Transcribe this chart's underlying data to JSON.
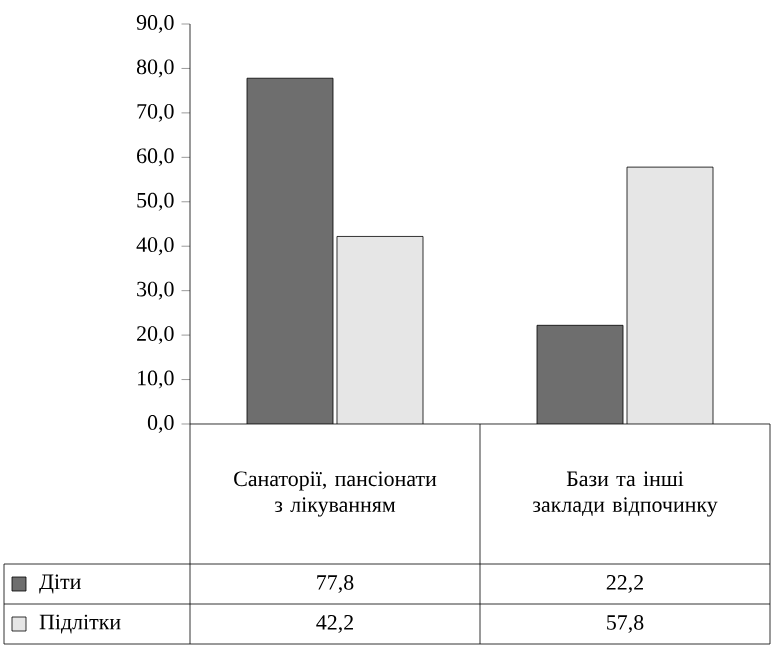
{
  "chart_data": {
    "type": "bar",
    "categories": [
      "Санаторії, пансіонати з лікуванням",
      "Бази та інші заклади відпочинку"
    ],
    "series": [
      {
        "name": "Діти",
        "color": "#6e6e6e",
        "values": [
          77.8,
          22.2
        ],
        "value_labels": [
          "77,8",
          "22,2"
        ]
      },
      {
        "name": "Підлітки",
        "color": "#e6e6e6",
        "values": [
          42.2,
          57.8
        ],
        "value_labels": [
          "42,2",
          "57,8"
        ]
      }
    ],
    "ylim": [
      0,
      90
    ],
    "yticks": [
      {
        "value": 0,
        "label": "0,0"
      },
      {
        "value": 10,
        "label": "10,0"
      },
      {
        "value": 20,
        "label": "20,0"
      },
      {
        "value": 30,
        "label": "30,0"
      },
      {
        "value": 40,
        "label": "40,0"
      },
      {
        "value": 50,
        "label": "50,0"
      },
      {
        "value": 60,
        "label": "60,0"
      },
      {
        "value": 70,
        "label": "70,0"
      },
      {
        "value": 80,
        "label": "80,0"
      },
      {
        "value": 90,
        "label": "90,0"
      }
    ],
    "grid": false,
    "legend": "bottom left"
  }
}
